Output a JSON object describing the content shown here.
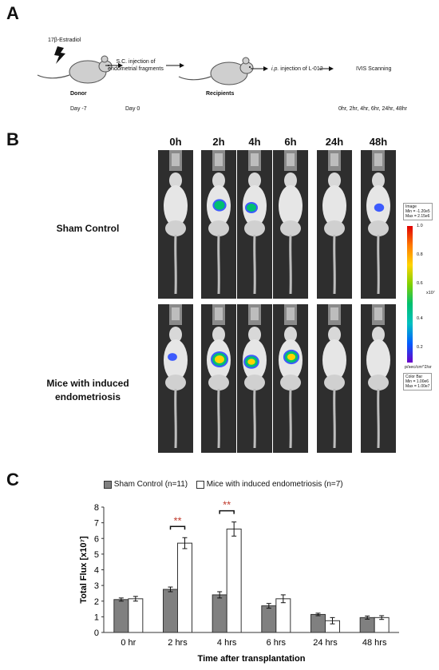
{
  "panel_a": {
    "label": "A",
    "estradiol": "17β-Estradiol",
    "sc_injection_line1": "S.C. injection of",
    "sc_injection_line2": "endometrial fragments",
    "ip_injection_prefix": "i.p.",
    "ip_injection_rest": " injection of L-012",
    "ivis": "IVIS Scanning",
    "donor": "Donor",
    "recipients": "Recipients",
    "day_minus7": "Day -7",
    "day0": "Day 0",
    "timepoints": "0hr, 2hr, 4hr, 6hr, 24hr, 48hr"
  },
  "panel_b": {
    "label": "B",
    "columns": [
      "0h",
      "2h",
      "4h",
      "6h",
      "24h",
      "48h"
    ],
    "row_sham": "Sham  Control",
    "row_endo_line1": "Mice with induced",
    "row_endo_line2": "endometriosis",
    "scale_top_box": [
      "Image",
      "Min = -1.20e5",
      "Max = 2.15e6"
    ],
    "scale_ticks": [
      "1.0",
      "0.8",
      "0.6",
      "0.4",
      "0.2"
    ],
    "scale_unit": "x10⁷",
    "scale_bottom_unit": "p/sec/cm^2/sr",
    "scale_bottom_box": [
      "Color Bar",
      "Min = 1.00e6",
      "Max = 1.00e7"
    ],
    "sham_signal": [
      0,
      0.6,
      0.5,
      0,
      0,
      0.2
    ],
    "endo_signal": [
      0.15,
      1.0,
      0.8,
      0.85,
      0,
      0
    ]
  },
  "panel_c": {
    "label": "C",
    "chart_data": {
      "type": "bar",
      "categories": [
        "0 hr",
        "2 hrs",
        "4 hrs",
        "6 hrs",
        "24 hrs",
        "48 hrs"
      ],
      "series": [
        {
          "name": "Sham Control (n=11)",
          "values": [
            2.1,
            2.75,
            2.4,
            1.7,
            1.15,
            0.95
          ],
          "errors": [
            0.1,
            0.15,
            0.2,
            0.15,
            0.08,
            0.1
          ],
          "color": "#808080"
        },
        {
          "name": "Mice with induced endometriosis (n=7)",
          "values": [
            2.15,
            5.7,
            6.6,
            2.15,
            0.75,
            0.95
          ],
          "errors": [
            0.15,
            0.35,
            0.45,
            0.25,
            0.2,
            0.12
          ],
          "color": "#ffffff"
        }
      ],
      "ylabel": "Total Flux [x10⁷]",
      "xlabel": "Time after transplantation",
      "ylim": [
        0,
        8
      ],
      "yticks": [
        "0",
        "1",
        "2",
        "3",
        "4",
        "5",
        "6",
        "7",
        "8"
      ],
      "significance": [
        {
          "category": "2 hrs",
          "label": "**"
        },
        {
          "category": "4 hrs",
          "label": "**"
        }
      ],
      "significance_color": "#c0392b",
      "legend_position": "top"
    }
  }
}
